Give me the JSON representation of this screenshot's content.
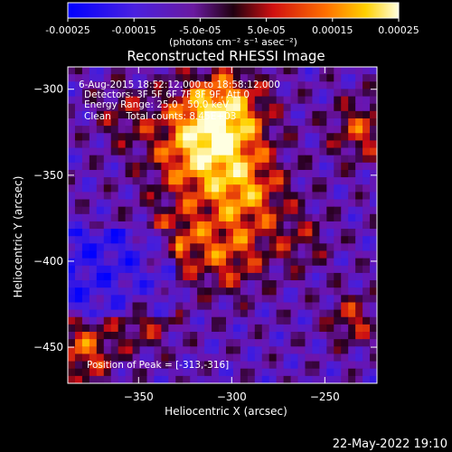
{
  "chart_data": {
    "type": "heatmap",
    "title": "Reconstructed RHESSI Image",
    "colorbar": {
      "ticks": [
        "-0.00025",
        "-0.00015",
        "-5.0e-05",
        "5.0e-05",
        "0.00015",
        "0.00025"
      ],
      "tick_values": [
        -0.00025,
        -0.00015,
        -5e-05,
        5e-05,
        0.00015,
        0.00025
      ],
      "range": [
        -0.00025,
        0.00025
      ],
      "units_label": "(photons cm⁻² s⁻¹ asec⁻²)",
      "colors": [
        "#0000ff",
        "#5a18d0",
        "#a0107a",
        "#e01010",
        "#ff7000",
        "#ffd000",
        "#ffffd8"
      ]
    },
    "xlabel": "Heliocentric X (arcsec)",
    "ylabel": "Heliocentric Y (arcsec)",
    "x_ticks": [
      -350,
      -300,
      -250
    ],
    "y_ticks": [
      -300,
      -350,
      -400,
      -450
    ],
    "xlim": [
      -388,
      -222
    ],
    "ylim": [
      -471,
      -287
    ],
    "annotations": [
      "6-Aug-2015 18:52:12.000 to 18:58:12.000",
      "Detectors: 3F 5F 6F 7F 8F 9F, Att 0",
      "Energy Range: 25.0 - 50.0 keV",
      "Clean     Total counts: 8.45E+03"
    ],
    "peak_label": "Position of Peak = [-313,-316]",
    "peak_position": [
      -313,
      -316
    ]
  },
  "footer": {
    "timestamp": "22-May-2022 19:10"
  }
}
